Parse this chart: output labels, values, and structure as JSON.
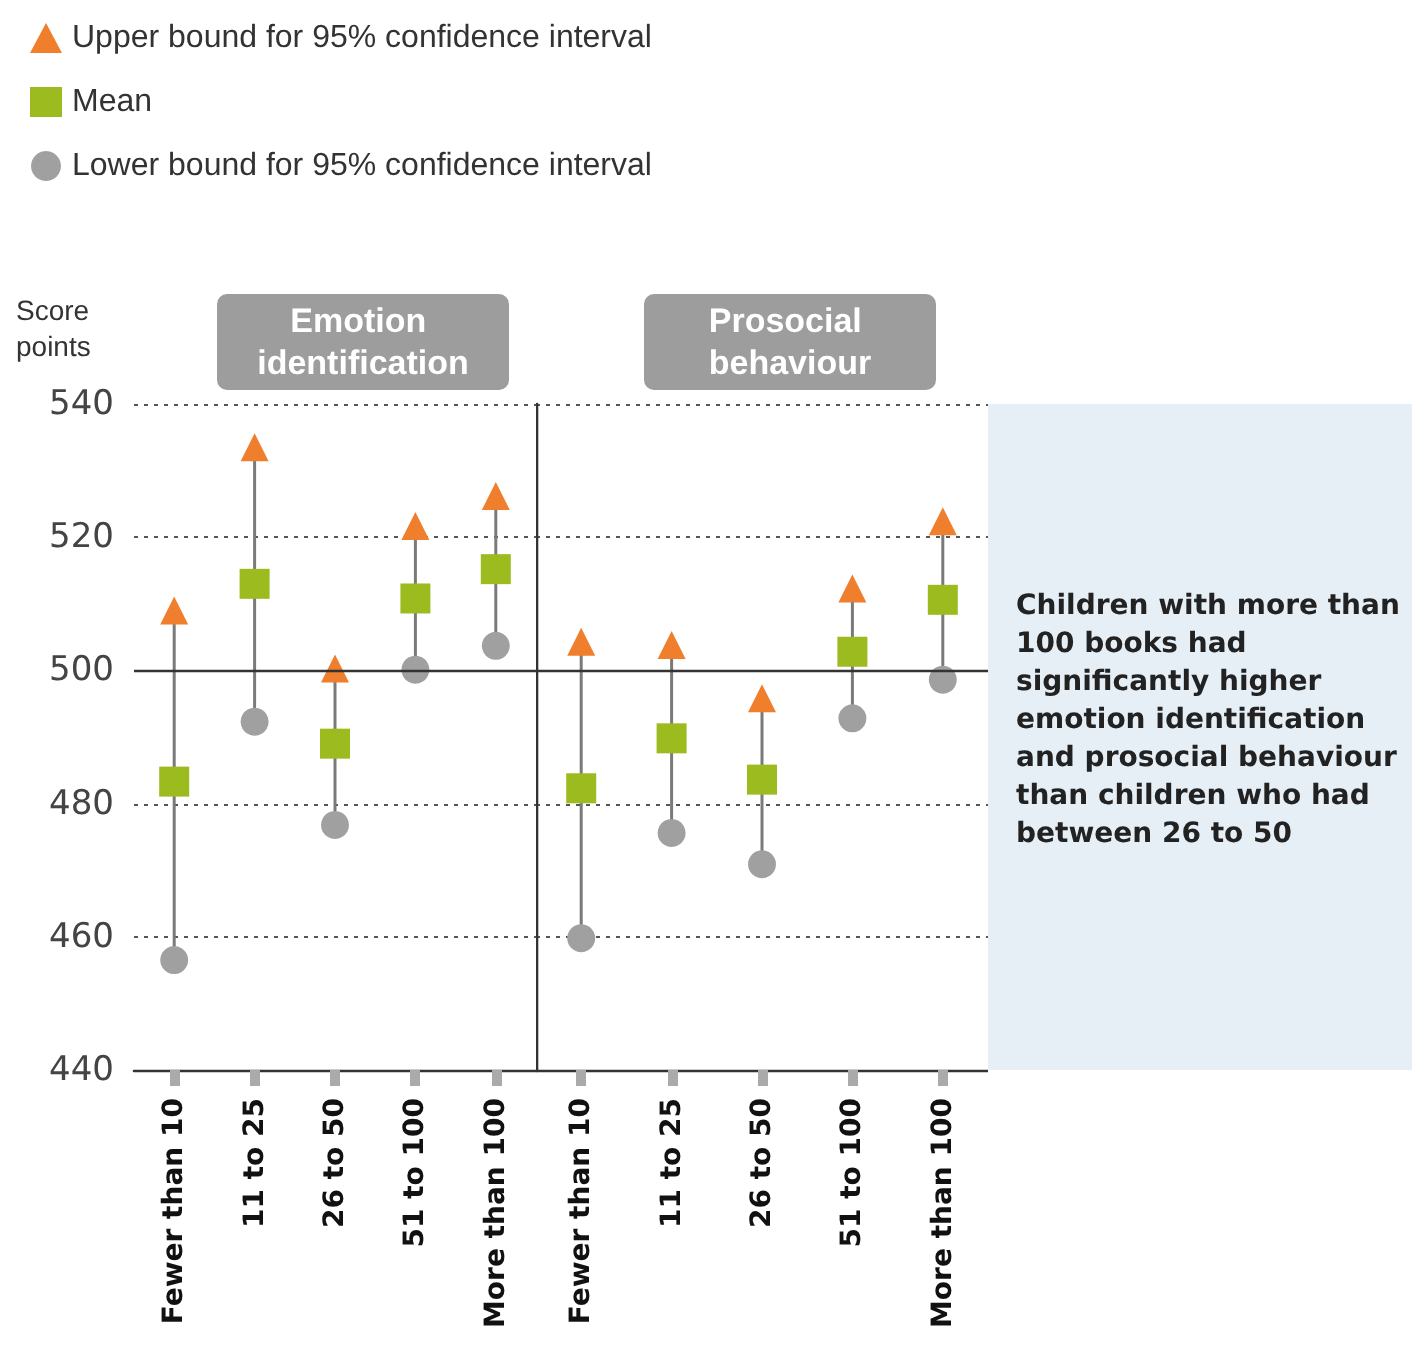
{
  "chart_data": [
    {
      "type": "scatter",
      "title": "Emotion identification",
      "ylabel": "Score points",
      "categories": [
        "Fewer than 10",
        "11 to 25",
        "26 to 50",
        "51 to 100",
        "More than 100"
      ],
      "series": [
        {
          "name": "Upper bound for 95% confidence interval",
          "color": "#f07f2d",
          "marker": "triangle",
          "values": [
            509,
            533.5,
            500.3,
            521.7,
            526.2
          ]
        },
        {
          "name": "Mean",
          "color": "#9bbb1f",
          "marker": "square",
          "values": [
            483.3,
            513,
            489,
            510.8,
            515.2
          ]
        },
        {
          "name": "Lower bound for 95% confidence interval",
          "color": "#a0a0a0",
          "marker": "circle",
          "values": [
            456.5,
            492.3,
            476.8,
            500.1,
            503.7
          ]
        }
      ],
      "ylim": [
        440,
        540
      ],
      "yticks": [
        440,
        460,
        480,
        500,
        520,
        540
      ],
      "grid": "y",
      "legend": "top",
      "ref_lines": [
        {
          "axis": "y",
          "value": 500
        }
      ]
    },
    {
      "type": "scatter",
      "title": "Prosocial behaviour",
      "categories": [
        "Fewer than 10",
        "11 to 25",
        "26 to 50",
        "51 to 100",
        "More than 100"
      ],
      "series": [
        {
          "color": "#f07f2d",
          "marker": "triangle",
          "values": [
            504.3,
            503.8,
            495.8,
            512.3,
            522.4
          ]
        },
        {
          "color": "#9bbb1f",
          "marker": "square",
          "values": [
            482.3,
            489.8,
            483.6,
            502.8,
            510.6
          ]
        },
        {
          "color": "#a0a0a0",
          "marker": "circle",
          "values": [
            459.8,
            475.6,
            470.9,
            492.8,
            498.6
          ]
        }
      ],
      "ylim": [
        440,
        540
      ],
      "yticks": [
        440,
        460,
        480,
        500,
        520,
        540
      ],
      "grid": "y",
      "tick_labels": "x",
      "ref_lines": [
        {
          "axis": "y",
          "value": 500
        }
      ],
      "annotations": [
        "Children with more than 100 books had significantly higher emotion identification and prosocial behaviour than children who had between 26 to 50"
      ]
    }
  ]
}
